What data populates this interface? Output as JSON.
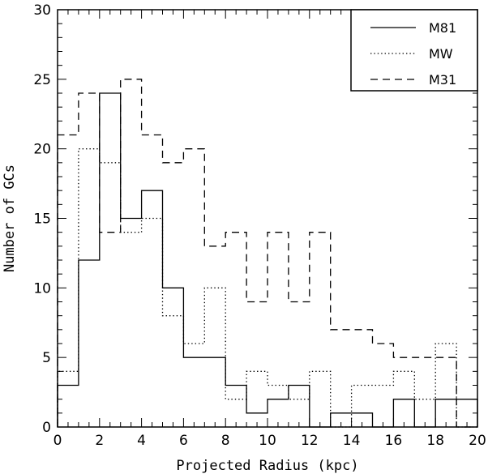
{
  "chart_data": {
    "type": "histogram",
    "title": "",
    "xlabel": "Projected Radius (kpc)",
    "ylabel": "Number of GCs",
    "xlim": [
      0,
      20
    ],
    "ylim": [
      0,
      30
    ],
    "xticks": [
      0,
      2,
      4,
      6,
      8,
      10,
      12,
      14,
      16,
      18,
      20
    ],
    "yticks": [
      0,
      5,
      10,
      15,
      20,
      25,
      30
    ],
    "bin_edges": [
      0,
      1,
      2,
      3,
      4,
      5,
      6,
      7,
      8,
      9,
      10,
      11,
      12,
      13,
      14,
      15,
      16,
      17,
      18,
      19,
      20
    ],
    "grid": false,
    "legend_position": "top-right",
    "series": [
      {
        "name": "M81",
        "linestyle": "solid",
        "color": "#000000",
        "values": [
          3,
          12,
          24,
          15,
          17,
          10,
          5,
          5,
          3,
          1,
          2,
          3,
          0,
          1,
          1,
          0,
          2,
          0,
          2,
          2
        ]
      },
      {
        "name": "MW",
        "linestyle": "dotted",
        "color": "#000000",
        "values": [
          4,
          20,
          19,
          14,
          15,
          8,
          6,
          10,
          2,
          4,
          3,
          2,
          4,
          0,
          3,
          3,
          4,
          2,
          6,
          0
        ]
      },
      {
        "name": "M31",
        "linestyle": "dashed",
        "color": "#000000",
        "values": [
          21,
          24,
          14,
          25,
          21,
          19,
          20,
          13,
          14,
          9,
          14,
          9,
          14,
          7,
          7,
          6,
          5,
          5,
          5,
          0
        ]
      }
    ]
  }
}
